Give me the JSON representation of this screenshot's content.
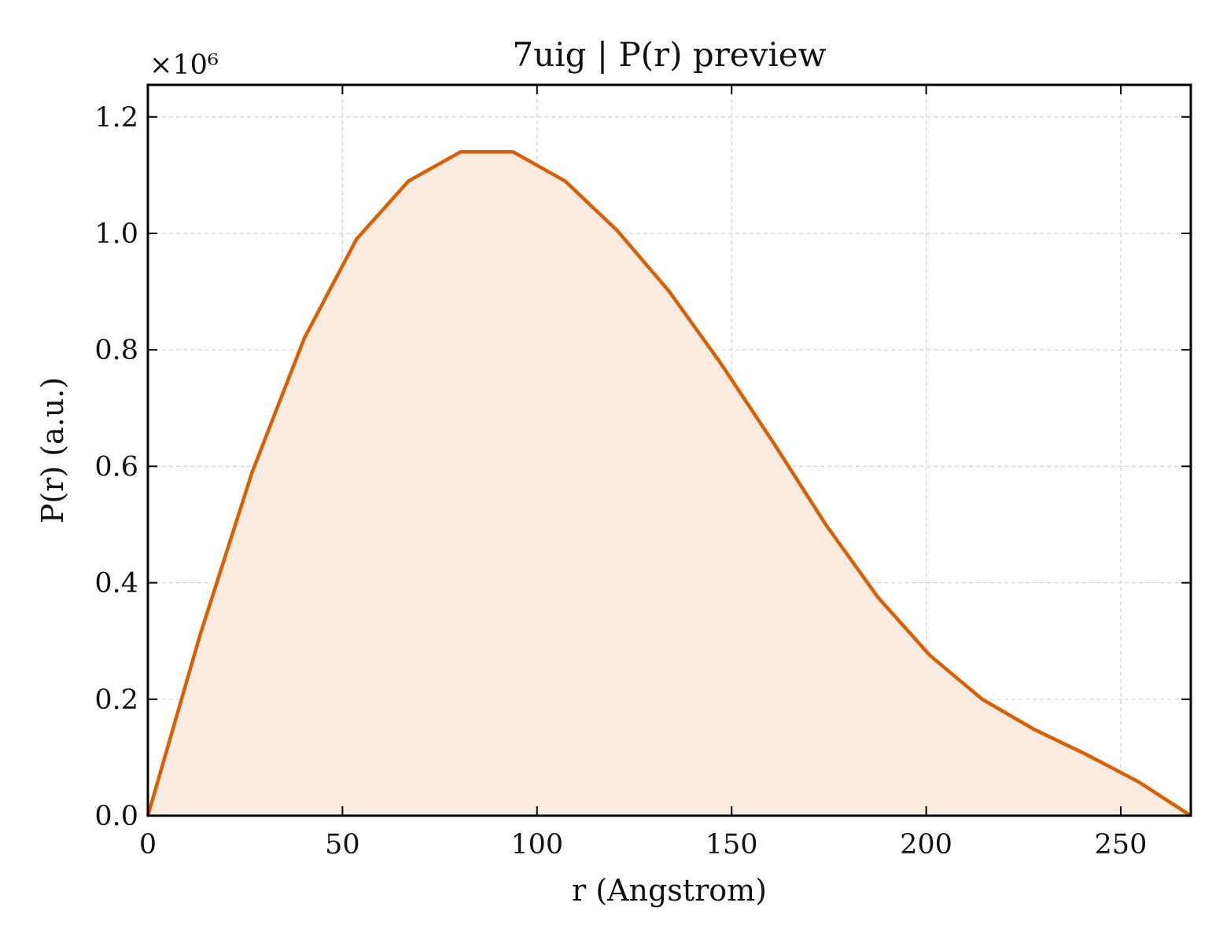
{
  "chart_data": {
    "type": "area",
    "title": "7uig | P(r) preview",
    "xlabel": "r (Angstrom)",
    "ylabel": "P(r) (a.u.)",
    "y_multiplier_label": "×10⁶",
    "xlim": [
      0,
      268
    ],
    "ylim": [
      0,
      1.255
    ],
    "x_ticks": [
      0,
      50,
      100,
      150,
      200,
      250
    ],
    "x_tick_labels": [
      "0",
      "50",
      "100",
      "150",
      "200",
      "250"
    ],
    "y_ticks": [
      0.0,
      0.2,
      0.4,
      0.6,
      0.8,
      1.0,
      1.2
    ],
    "y_tick_labels": [
      "0.0",
      "0.2",
      "0.4",
      "0.6",
      "0.8",
      "1.0",
      "1.2"
    ],
    "grid": true,
    "colors": {
      "line": "#d95f02",
      "fill": "#f9ebe0"
    },
    "series": [
      {
        "x": [
          0,
          13.4,
          26.8,
          40.2,
          53.6,
          67.0,
          80.4,
          93.8,
          107.2,
          120.6,
          134.0,
          147.4,
          160.8,
          174.2,
          187.6,
          201.0,
          214.4,
          227.8,
          241.2,
          254.6,
          268.0
        ],
        "y": [
          0.0,
          0.31,
          0.59,
          0.82,
          0.99,
          1.09,
          1.14,
          1.14,
          1.09,
          1.005,
          0.9,
          0.775,
          0.64,
          0.5,
          0.375,
          0.275,
          0.2,
          0.148,
          0.105,
          0.058,
          0.0
        ]
      }
    ]
  }
}
